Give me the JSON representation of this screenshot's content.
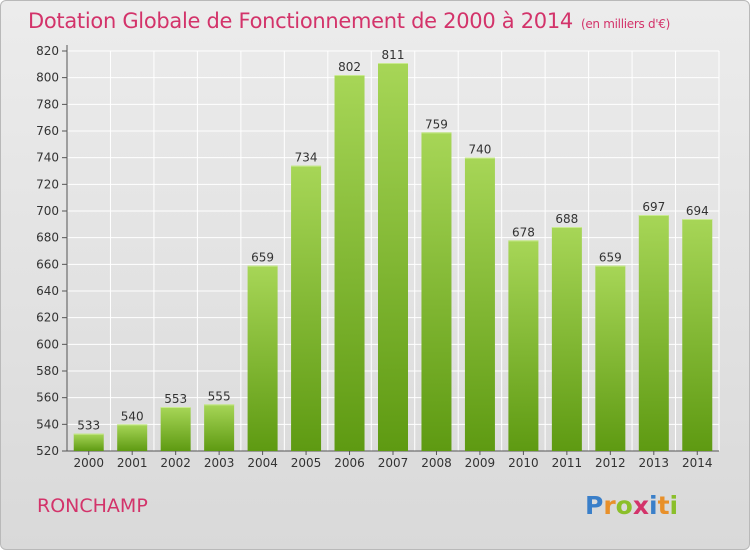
{
  "title": "Dotation Globale de Fonctionnement de 2000 à 2014",
  "subtitle": "(en milliers d'€)",
  "commune": "RONCHAMP",
  "logo": "Proxiti",
  "colors": {
    "title": "#d3336a",
    "bar_top": "#a7d657",
    "bar_bottom": "#5e9a12",
    "grid": "#ffffff"
  },
  "chart_data": {
    "type": "bar",
    "categories": [
      "2000",
      "2001",
      "2002",
      "2003",
      "2004",
      "2005",
      "2006",
      "2007",
      "2008",
      "2009",
      "2010",
      "2011",
      "2012",
      "2013",
      "2014"
    ],
    "values": [
      533,
      540,
      553,
      555,
      659,
      734,
      802,
      811,
      759,
      740,
      678,
      688,
      659,
      697,
      694
    ],
    "title": "Dotation Globale de Fonctionnement de 2000 à 2014",
    "ylim": [
      520,
      820
    ],
    "yticks": [
      520,
      540,
      560,
      580,
      600,
      620,
      640,
      660,
      680,
      700,
      720,
      740,
      760,
      780,
      800,
      820
    ],
    "grid": true
  }
}
